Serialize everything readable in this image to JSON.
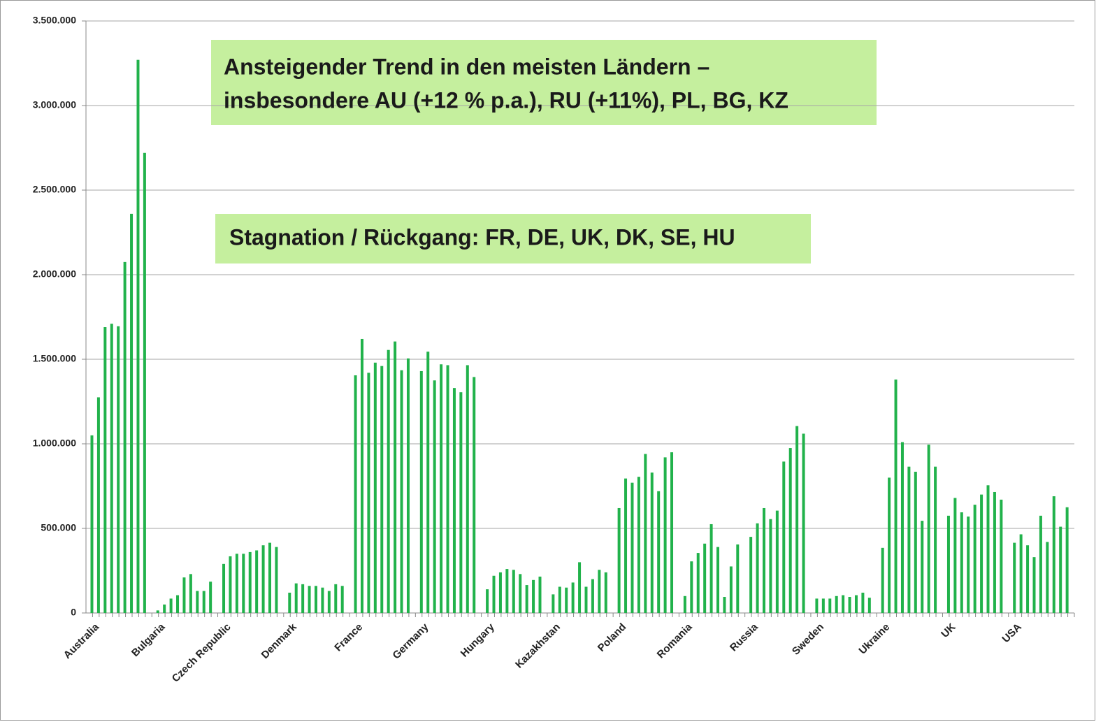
{
  "chart_data": {
    "type": "bar",
    "color": "#21b24b",
    "grid": true,
    "categories": [
      "Australia",
      null,
      null,
      null,
      null,
      null,
      null,
      null,
      null,
      null,
      "Bulgaria",
      null,
      null,
      null,
      null,
      null,
      null,
      null,
      null,
      null,
      "Czech Republic",
      null,
      null,
      null,
      null,
      null,
      null,
      null,
      null,
      null,
      "Denmark",
      null,
      null,
      null,
      null,
      null,
      null,
      null,
      null,
      null,
      "France",
      null,
      null,
      null,
      null,
      null,
      null,
      null,
      null,
      null,
      "Germany",
      null,
      null,
      null,
      null,
      null,
      null,
      null,
      null,
      null,
      "Hungary",
      null,
      null,
      null,
      null,
      null,
      null,
      null,
      null,
      null,
      "Kazakhstan",
      null,
      null,
      null,
      null,
      null,
      null,
      null,
      null,
      null,
      "Poland",
      null,
      null,
      null,
      null,
      null,
      null,
      null,
      null,
      null,
      "Romania",
      null,
      null,
      null,
      null,
      null,
      null,
      null,
      null,
      null,
      "Russia",
      null,
      null,
      null,
      null,
      null,
      null,
      null,
      null,
      null,
      "Sweden",
      null,
      null,
      null,
      null,
      null,
      null,
      null,
      null,
      null,
      "Ukraine",
      null,
      null,
      null,
      null,
      null,
      null,
      null,
      null,
      null,
      "UK",
      null,
      null,
      null,
      null,
      null,
      null,
      null,
      null,
      null,
      "USA",
      null,
      null,
      null,
      null,
      null,
      null,
      null,
      null,
      null
    ],
    "values": [
      1050000,
      1275000,
      1690000,
      1710000,
      1695000,
      2075000,
      2360000,
      3270000,
      2720000,
      null,
      15000,
      50000,
      85000,
      105000,
      210000,
      230000,
      130000,
      130000,
      185000,
      null,
      290000,
      335000,
      350000,
      350000,
      360000,
      370000,
      400000,
      415000,
      390000,
      null,
      120000,
      175000,
      170000,
      160000,
      160000,
      150000,
      130000,
      170000,
      160000,
      null,
      1405000,
      1620000,
      1420000,
      1480000,
      1460000,
      1555000,
      1605000,
      1435000,
      1505000,
      null,
      1430000,
      1545000,
      1375000,
      1470000,
      1465000,
      1330000,
      1305000,
      1465000,
      1395000,
      null,
      140000,
      220000,
      240000,
      260000,
      255000,
      230000,
      165000,
      195000,
      215000,
      null,
      110000,
      155000,
      150000,
      180000,
      300000,
      155000,
      200000,
      255000,
      240000,
      null,
      620000,
      795000,
      770000,
      805000,
      940000,
      830000,
      720000,
      920000,
      950000,
      null,
      100000,
      305000,
      355000,
      410000,
      525000,
      390000,
      95000,
      275000,
      405000,
      null,
      450000,
      530000,
      620000,
      555000,
      605000,
      895000,
      975000,
      1105000,
      1060000,
      null,
      85000,
      85000,
      85000,
      100000,
      105000,
      95000,
      105000,
      120000,
      90000,
      null,
      385000,
      800000,
      1380000,
      1010000,
      865000,
      835000,
      545000,
      995000,
      865000,
      null,
      575000,
      680000,
      595000,
      570000,
      640000,
      700000,
      755000,
      715000,
      670000,
      null,
      415000,
      465000,
      400000,
      330000,
      575000,
      420000,
      690000,
      510000,
      625000,
      null
    ],
    "ylim": [
      0,
      3500000
    ],
    "yticks": [
      0,
      {
        "value": 500000,
        "label": "500.000"
      },
      {
        "value": 1000000,
        "label": "1.000.000"
      },
      {
        "value": 1500000,
        "label": "1.500.000"
      },
      {
        "value": 2000000,
        "label": "2.000.000"
      },
      {
        "value": 2500000,
        "label": "2.500.000"
      },
      {
        "value": 3000000,
        "label": "3.000.000"
      },
      {
        "value": 3500000,
        "label": "3.500.000"
      }
    ],
    "annotations": [
      {
        "lines": [
          "Ansteigender Trend in den meisten Ländern –",
          "insbesondere AU (+12 % p.a.), RU (+11%), PL, BG, KZ"
        ]
      },
      {
        "lines": [
          "Stagnation / Rückgang: FR, DE, UK, DK, SE, HU"
        ]
      }
    ]
  }
}
